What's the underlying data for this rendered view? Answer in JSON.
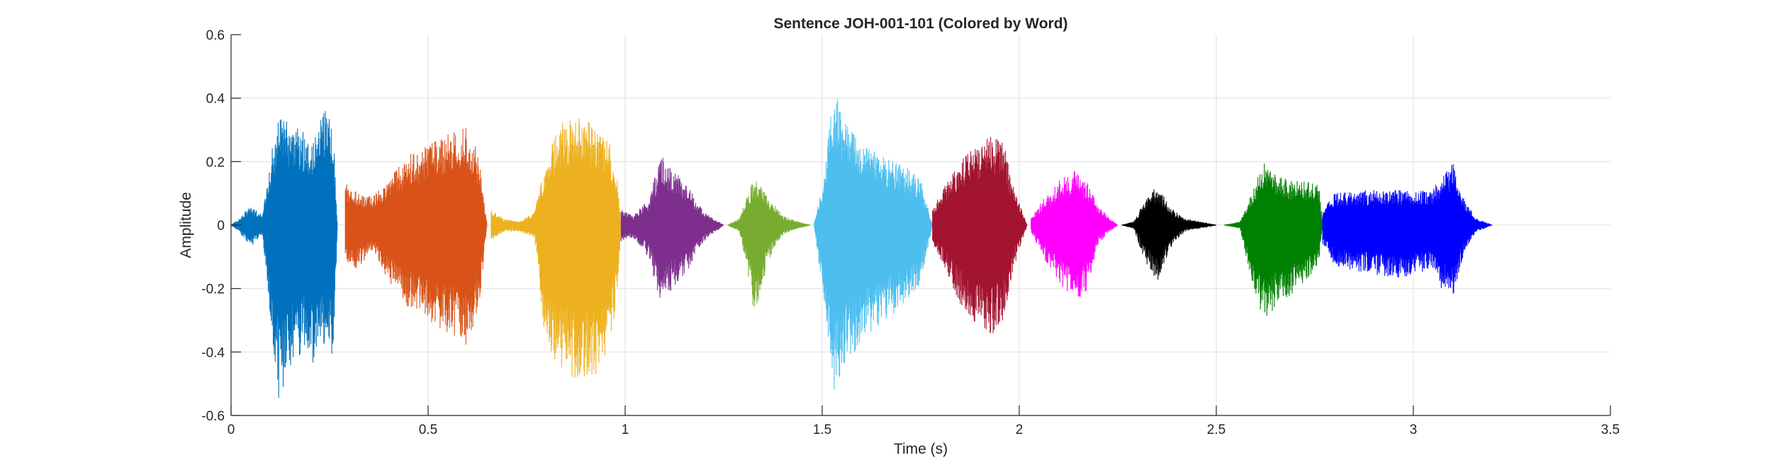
{
  "chart_data": {
    "type": "line",
    "title": "Sentence JOH-001-101 (Colored by Word)",
    "xlabel": "Time (s)",
    "ylabel": "Amplitude",
    "xlim": [
      0,
      3.5
    ],
    "ylim": [
      -0.6,
      0.6
    ],
    "xticks": [
      0,
      0.5,
      1,
      1.5,
      2,
      2.5,
      3,
      3.5
    ],
    "xtick_labels": [
      "0",
      "0.5",
      "1",
      "1.5",
      "2",
      "2.5",
      "3",
      "3.5"
    ],
    "yticks": [
      -0.6,
      -0.4,
      -0.2,
      0,
      0.2,
      0.4,
      0.6
    ],
    "ytick_labels": [
      "-0.6",
      "-0.4",
      "-0.2",
      "0",
      "0.2",
      "0.4",
      "0.6"
    ],
    "grid": true,
    "series": [
      {
        "color": "#0072BD",
        "start": 0.0,
        "end": 0.27,
        "envelope": [
          [
            0.0,
            0.0,
            0.0
          ],
          [
            0.02,
            0.02,
            -0.02
          ],
          [
            0.05,
            0.06,
            -0.07
          ],
          [
            0.08,
            0.03,
            -0.03
          ],
          [
            0.1,
            0.22,
            -0.3
          ],
          [
            0.12,
            0.34,
            -0.55
          ],
          [
            0.15,
            0.32,
            -0.45
          ],
          [
            0.18,
            0.3,
            -0.4
          ],
          [
            0.21,
            0.28,
            -0.44
          ],
          [
            0.24,
            0.37,
            -0.38
          ],
          [
            0.26,
            0.3,
            -0.42
          ],
          [
            0.27,
            0.0,
            0.0
          ]
        ]
      },
      {
        "color": "#D95319",
        "start": 0.29,
        "end": 0.65,
        "envelope": [
          [
            0.29,
            0.14,
            -0.12
          ],
          [
            0.32,
            0.1,
            -0.14
          ],
          [
            0.36,
            0.09,
            -0.08
          ],
          [
            0.4,
            0.15,
            -0.18
          ],
          [
            0.45,
            0.22,
            -0.26
          ],
          [
            0.5,
            0.25,
            -0.3
          ],
          [
            0.55,
            0.29,
            -0.34
          ],
          [
            0.6,
            0.31,
            -0.38
          ],
          [
            0.63,
            0.22,
            -0.25
          ],
          [
            0.65,
            0.0,
            0.0
          ]
        ]
      },
      {
        "color": "#EDB120",
        "start": 0.66,
        "end": 0.99,
        "envelope": [
          [
            0.66,
            0.05,
            -0.05
          ],
          [
            0.69,
            0.02,
            -0.02
          ],
          [
            0.73,
            0.01,
            -0.02
          ],
          [
            0.77,
            0.04,
            -0.04
          ],
          [
            0.8,
            0.22,
            -0.4
          ],
          [
            0.84,
            0.33,
            -0.46
          ],
          [
            0.88,
            0.34,
            -0.5
          ],
          [
            0.92,
            0.32,
            -0.48
          ],
          [
            0.96,
            0.26,
            -0.42
          ],
          [
            0.98,
            0.15,
            -0.2
          ],
          [
            0.99,
            0.0,
            0.0
          ]
        ]
      },
      {
        "color": "#7E2F8E",
        "start": 0.99,
        "end": 1.25,
        "envelope": [
          [
            0.99,
            0.05,
            -0.05
          ],
          [
            1.02,
            0.03,
            -0.04
          ],
          [
            1.06,
            0.08,
            -0.1
          ],
          [
            1.09,
            0.22,
            -0.26
          ],
          [
            1.12,
            0.18,
            -0.2
          ],
          [
            1.16,
            0.12,
            -0.14
          ],
          [
            1.2,
            0.04,
            -0.05
          ],
          [
            1.25,
            0.0,
            0.0
          ]
        ]
      },
      {
        "color": "#77AC30",
        "start": 1.26,
        "end": 1.47,
        "envelope": [
          [
            1.26,
            0.0,
            0.0
          ],
          [
            1.29,
            0.02,
            -0.02
          ],
          [
            1.31,
            0.1,
            -0.14
          ],
          [
            1.33,
            0.15,
            -0.3
          ],
          [
            1.36,
            0.09,
            -0.12
          ],
          [
            1.4,
            0.03,
            -0.03
          ],
          [
            1.44,
            0.01,
            -0.01
          ],
          [
            1.47,
            0.0,
            0.0
          ]
        ]
      },
      {
        "color": "#4DBEEE",
        "start": 1.48,
        "end": 1.78,
        "envelope": [
          [
            1.48,
            0.01,
            -0.01
          ],
          [
            1.5,
            0.12,
            -0.2
          ],
          [
            1.53,
            0.43,
            -0.52
          ],
          [
            1.56,
            0.32,
            -0.45
          ],
          [
            1.6,
            0.26,
            -0.36
          ],
          [
            1.64,
            0.24,
            -0.32
          ],
          [
            1.68,
            0.2,
            -0.28
          ],
          [
            1.72,
            0.18,
            -0.24
          ],
          [
            1.75,
            0.14,
            -0.18
          ],
          [
            1.78,
            0.0,
            0.0
          ]
        ]
      },
      {
        "color": "#A2142F",
        "start": 1.78,
        "end": 2.02,
        "envelope": [
          [
            1.78,
            0.05,
            -0.05
          ],
          [
            1.81,
            0.12,
            -0.14
          ],
          [
            1.85,
            0.2,
            -0.25
          ],
          [
            1.89,
            0.25,
            -0.32
          ],
          [
            1.93,
            0.28,
            -0.35
          ],
          [
            1.96,
            0.26,
            -0.3
          ],
          [
            1.99,
            0.1,
            -0.12
          ],
          [
            2.02,
            0.0,
            0.0
          ]
        ]
      },
      {
        "color": "#FF00FF",
        "start": 2.03,
        "end": 2.25,
        "envelope": [
          [
            2.03,
            0.02,
            -0.02
          ],
          [
            2.06,
            0.08,
            -0.1
          ],
          [
            2.1,
            0.14,
            -0.18
          ],
          [
            2.14,
            0.17,
            -0.24
          ],
          [
            2.17,
            0.14,
            -0.22
          ],
          [
            2.2,
            0.06,
            -0.06
          ],
          [
            2.23,
            0.02,
            -0.02
          ],
          [
            2.25,
            0.0,
            0.0
          ]
        ]
      },
      {
        "color": "#000000",
        "start": 2.26,
        "end": 2.5,
        "envelope": [
          [
            2.26,
            0.0,
            0.0
          ],
          [
            2.29,
            0.01,
            -0.01
          ],
          [
            2.32,
            0.08,
            -0.12
          ],
          [
            2.35,
            0.13,
            -0.18
          ],
          [
            2.38,
            0.06,
            -0.08
          ],
          [
            2.42,
            0.02,
            -0.02
          ],
          [
            2.46,
            0.01,
            -0.01
          ],
          [
            2.5,
            0.0,
            0.0
          ]
        ]
      },
      {
        "color": "#008000",
        "start": 2.52,
        "end": 2.77,
        "envelope": [
          [
            2.52,
            0.0,
            0.0
          ],
          [
            2.56,
            0.01,
            -0.01
          ],
          [
            2.59,
            0.1,
            -0.18
          ],
          [
            2.62,
            0.2,
            -0.3
          ],
          [
            2.65,
            0.16,
            -0.26
          ],
          [
            2.69,
            0.14,
            -0.22
          ],
          [
            2.73,
            0.14,
            -0.18
          ],
          [
            2.76,
            0.14,
            -0.12
          ],
          [
            2.77,
            0.0,
            0.0
          ]
        ]
      },
      {
        "color": "#0000FF",
        "start": 2.77,
        "end": 3.2,
        "envelope": [
          [
            2.77,
            0.05,
            -0.06
          ],
          [
            2.8,
            0.1,
            -0.13
          ],
          [
            2.88,
            0.11,
            -0.15
          ],
          [
            2.96,
            0.11,
            -0.17
          ],
          [
            3.04,
            0.11,
            -0.14
          ],
          [
            3.07,
            0.14,
            -0.2
          ],
          [
            3.1,
            0.2,
            -0.24
          ],
          [
            3.13,
            0.08,
            -0.08
          ],
          [
            3.16,
            0.02,
            -0.02
          ],
          [
            3.2,
            0.0,
            0.0
          ]
        ]
      }
    ]
  }
}
